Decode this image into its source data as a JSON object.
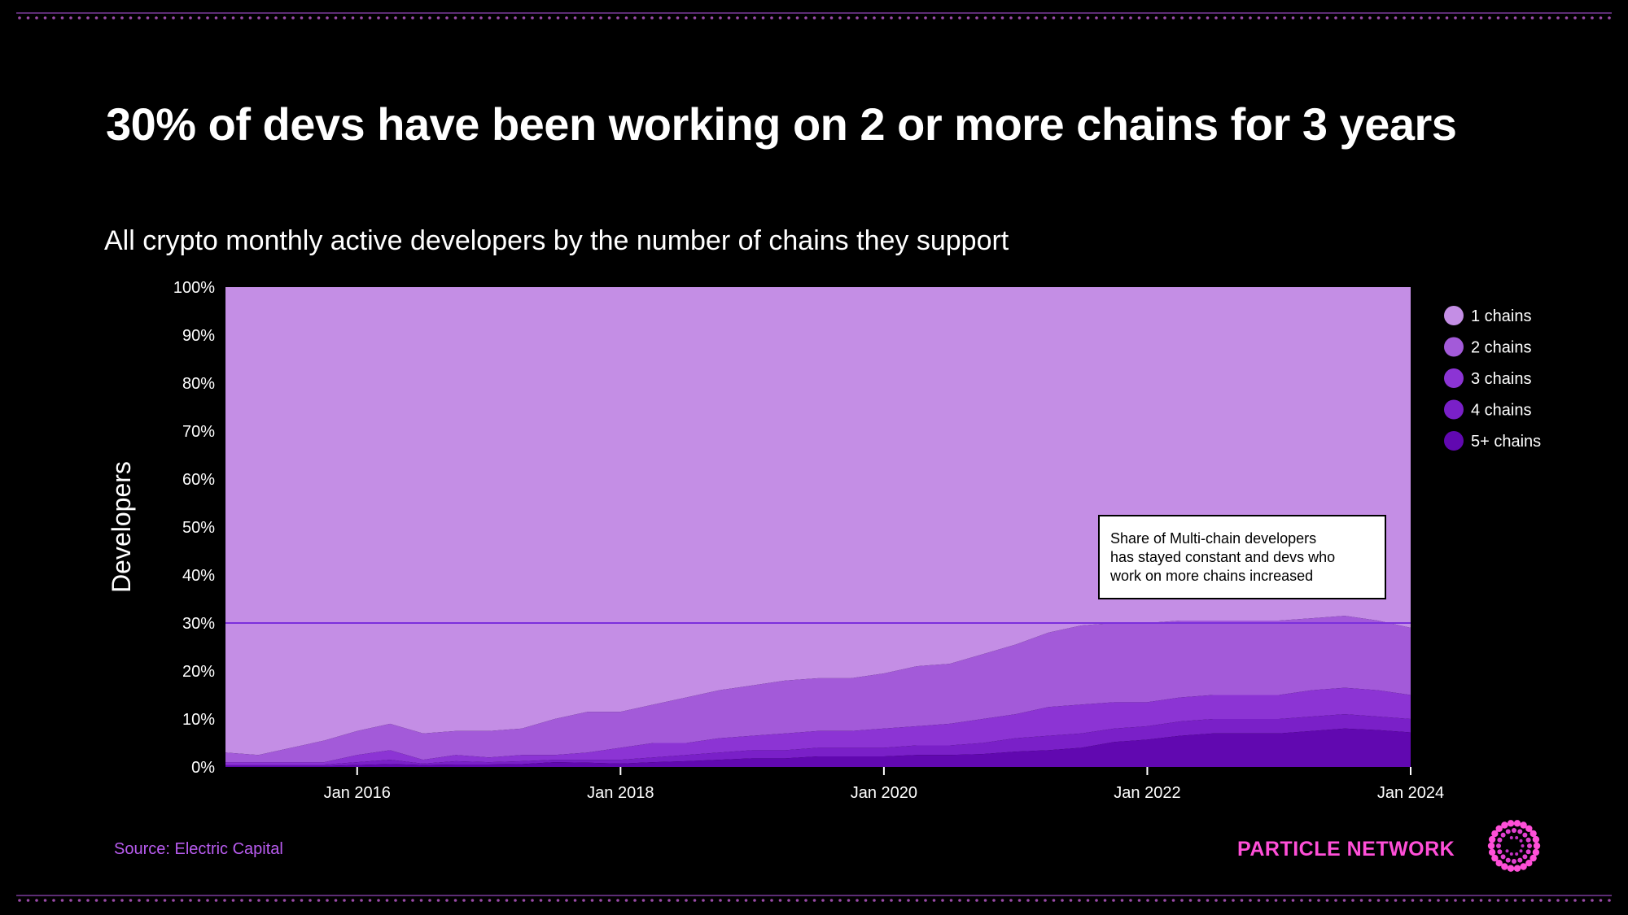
{
  "title": "30% of devs have been working on 2 or more chains for 3 years",
  "source": "Source: Electric Capital",
  "brand": {
    "name": "PARTICLE NETWORK",
    "logo_icon": "particle-network-logo-icon"
  },
  "colors": {
    "background": "#000000",
    "series": [
      "#c48ee5",
      "#a35ad9",
      "#8c34d4",
      "#7a20c8",
      "#6108b0"
    ],
    "reference_line": "#7b2fdc",
    "source_text": "#b95cf0",
    "brand": "#ff4fd8"
  },
  "chart_data": {
    "type": "area",
    "stacked": true,
    "normalized": true,
    "title": "All crypto monthly active developers by the number of chains they support",
    "xlabel": "",
    "ylabel": "Developers",
    "ylim": [
      0,
      100
    ],
    "yticks": [
      "0%",
      "10%",
      "20%",
      "30%",
      "40%",
      "50%",
      "60%",
      "70%",
      "80%",
      "90%",
      "100%"
    ],
    "xlim": [
      2015.0,
      2024.0
    ],
    "xticks": [
      {
        "x": 2016,
        "label": "Jan 2016"
      },
      {
        "x": 2018,
        "label": "Jan 2018"
      },
      {
        "x": 2020,
        "label": "Jan 2020"
      },
      {
        "x": 2022,
        "label": "Jan 2022"
      },
      {
        "x": 2024,
        "label": "Jan 2024"
      }
    ],
    "legend_position": "right",
    "reference_line": {
      "y": 30
    },
    "annotation": {
      "lines": [
        "Share of Multi-chain developers",
        "has stayed constant and devs who",
        "work on more chains increased"
      ]
    },
    "x": [
      2015.0,
      2015.25,
      2015.5,
      2015.75,
      2016.0,
      2016.25,
      2016.5,
      2016.75,
      2017.0,
      2017.25,
      2017.5,
      2017.75,
      2018.0,
      2018.25,
      2018.5,
      2018.75,
      2019.0,
      2019.25,
      2019.5,
      2019.75,
      2020.0,
      2020.25,
      2020.5,
      2020.75,
      2021.0,
      2021.25,
      2021.5,
      2021.75,
      2022.0,
      2022.25,
      2022.5,
      2022.75,
      2023.0,
      2023.25,
      2023.5,
      2023.75,
      2024.0
    ],
    "series": [
      {
        "name": "1 chains",
        "values": [
          97.0,
          97.5,
          96.0,
          94.5,
          92.5,
          91.0,
          93.0,
          92.5,
          92.5,
          92.0,
          90.0,
          88.5,
          88.5,
          87.0,
          85.5,
          84.0,
          83.0,
          82.0,
          81.5,
          81.5,
          80.5,
          79.0,
          78.5,
          76.5,
          74.5,
          72.0,
          70.5,
          70.0,
          70.0,
          69.5,
          69.5,
          69.5,
          69.5,
          69.0,
          68.5,
          69.5,
          71.0
        ]
      },
      {
        "name": "2 chains",
        "values": [
          2.0,
          1.5,
          3.0,
          4.5,
          5.0,
          5.5,
          5.5,
          5.0,
          5.5,
          5.5,
          7.5,
          8.5,
          7.5,
          8.0,
          9.5,
          10.0,
          10.5,
          11.0,
          11.0,
          11.0,
          11.5,
          12.5,
          12.5,
          13.5,
          14.5,
          15.5,
          16.5,
          16.5,
          16.5,
          16.0,
          15.5,
          15.5,
          15.5,
          15.0,
          15.0,
          14.5,
          14.0
        ]
      },
      {
        "name": "3 chains",
        "values": [
          0.5,
          0.5,
          0.5,
          0.5,
          1.5,
          2.0,
          0.8,
          1.3,
          1.0,
          1.3,
          1.0,
          1.5,
          2.5,
          3.0,
          2.5,
          3.0,
          3.0,
          3.5,
          3.5,
          3.5,
          4.0,
          4.0,
          4.5,
          5.0,
          5.0,
          6.0,
          6.0,
          5.5,
          5.0,
          5.0,
          5.0,
          5.0,
          5.0,
          5.5,
          5.5,
          5.5,
          5.0
        ]
      },
      {
        "name": "4 chains",
        "values": [
          0.3,
          0.3,
          0.3,
          0.3,
          0.6,
          0.9,
          0.3,
          0.7,
          0.5,
          0.6,
          0.5,
          0.6,
          0.8,
          1.0,
          1.3,
          1.5,
          1.7,
          1.7,
          1.8,
          1.8,
          1.8,
          2.0,
          2.0,
          2.3,
          2.8,
          3.0,
          3.0,
          2.8,
          2.8,
          3.0,
          3.0,
          3.0,
          3.0,
          3.0,
          3.0,
          2.8,
          2.8
        ]
      },
      {
        "name": "5+ chains",
        "values": [
          0.2,
          0.2,
          0.2,
          0.2,
          0.4,
          0.6,
          0.4,
          0.5,
          0.5,
          0.6,
          1.0,
          0.9,
          0.7,
          1.0,
          1.2,
          1.5,
          1.8,
          1.8,
          2.2,
          2.2,
          2.2,
          2.5,
          2.5,
          2.7,
          3.2,
          3.5,
          4.0,
          5.2,
          5.7,
          6.5,
          7.0,
          7.0,
          7.0,
          7.5,
          8.0,
          7.7,
          7.2
        ]
      }
    ]
  }
}
